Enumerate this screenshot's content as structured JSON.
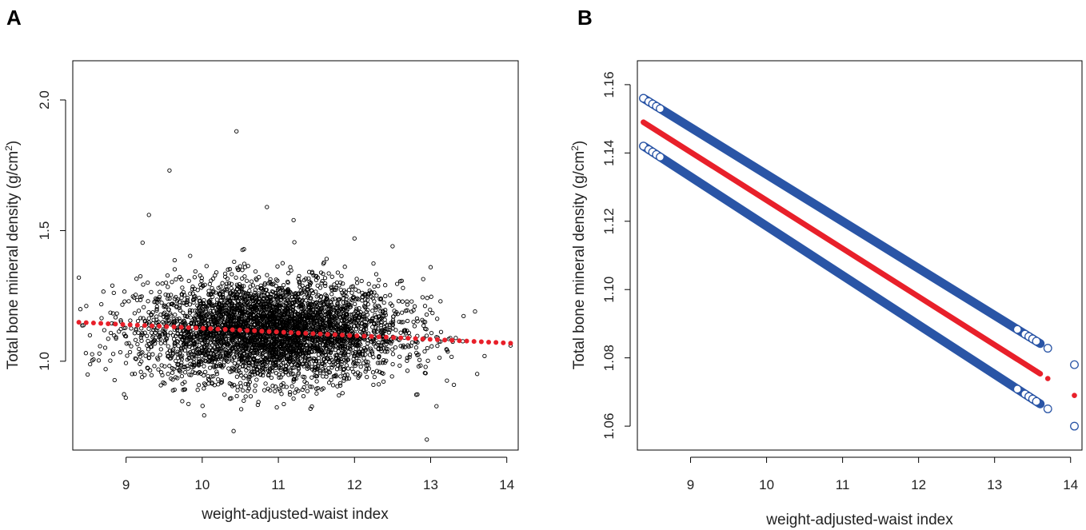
{
  "chart_data": [
    {
      "panel_label": "A",
      "type": "scatter",
      "xlabel": "weight-adjusted-waist index",
      "ylabel_prefix": "Total bone mineral density (g/cm",
      "ylabel_sup": "2",
      "ylabel_suffix": ")",
      "xlim": [
        8.3,
        14.15
      ],
      "ylim": [
        0.66,
        2.15
      ],
      "xticks": [
        "9",
        "10",
        "11",
        "12",
        "13",
        "14"
      ],
      "yticks": [
        "1.0",
        "1.5",
        "2.0"
      ],
      "scatter_summary": {
        "x_center": 10.9,
        "y_center": 1.115,
        "x_sd": 0.85,
        "y_sd": 0.095,
        "n_points": 4200,
        "outliers": [
          [
            10.45,
            1.88
          ],
          [
            9.57,
            1.73
          ],
          [
            10.85,
            1.59
          ],
          [
            9.3,
            1.56
          ],
          [
            11.2,
            1.54
          ],
          [
            13.0,
            1.36
          ],
          [
            12.0,
            1.47
          ],
          [
            12.5,
            1.44
          ],
          [
            8.38,
            1.32
          ],
          [
            14.05,
            1.06
          ],
          [
            12.95,
            0.7
          ]
        ]
      },
      "fit_line": {
        "color": "#e8202a",
        "x_start": 8.38,
        "x_end": 14.05,
        "y_start": 1.149,
        "y_end": 1.069,
        "markers": 60
      }
    },
    {
      "panel_label": "B",
      "type": "line",
      "xlabel": "weight-adjusted-waist index",
      "ylabel_prefix": "Total bone mineral density (g/cm",
      "ylabel_sup": "2",
      "ylabel_suffix": ")",
      "xlim": [
        8.3,
        14.15
      ],
      "ylim": [
        1.053,
        1.167
      ],
      "xticks": [
        "9",
        "10",
        "11",
        "12",
        "13",
        "14"
      ],
      "yticks": [
        "1.06",
        "1.08",
        "1.10",
        "1.12",
        "1.14",
        "1.16"
      ],
      "series": [
        {
          "name": "fit",
          "color": "#e8202a",
          "x_start": 8.38,
          "x_end": 14.05,
          "y_start": 1.149,
          "y_end": 1.069
        },
        {
          "name": "upper-ci",
          "color": "#2a55a6",
          "x_start": 8.38,
          "x_end": 14.05,
          "y_start": 1.156,
          "y_end": 1.078
        },
        {
          "name": "lower-ci",
          "color": "#2a55a6",
          "x_start": 8.38,
          "x_end": 14.05,
          "y_start": 1.142,
          "y_end": 1.06
        }
      ],
      "endpoint_markers_x": [
        8.38,
        8.45,
        8.5,
        8.55,
        8.6,
        13.3,
        13.4,
        13.45,
        13.5,
        13.55,
        13.7,
        14.05
      ]
    }
  ]
}
